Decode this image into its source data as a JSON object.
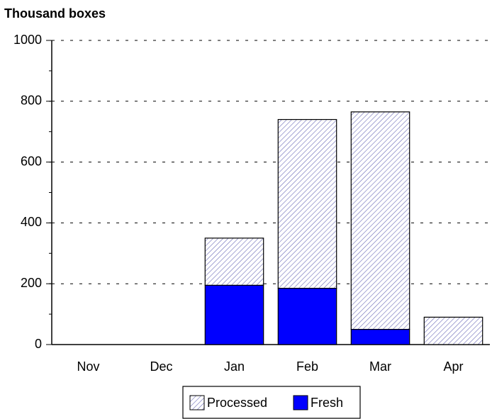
{
  "chart_data": {
    "type": "stacked_bar",
    "title": "Thousand boxes",
    "categories": [
      "Nov",
      "Dec",
      "Jan",
      "Feb",
      "Mar",
      "Apr"
    ],
    "series": [
      {
        "name": "Processed",
        "color": "#6a6ab8",
        "pattern": "hatch",
        "values": [
          0,
          0,
          155,
          555,
          715,
          90
        ]
      },
      {
        "name": "Fresh",
        "color": "#0000ff",
        "values": [
          0,
          0,
          195,
          185,
          50,
          0
        ]
      }
    ],
    "stack_order": [
      1,
      0
    ],
    "ylim": [
      0,
      1000
    ],
    "yticks": [
      0,
      200,
      400,
      600,
      800,
      1000
    ],
    "yminor": 100,
    "grid": true,
    "legend": "bottom"
  }
}
